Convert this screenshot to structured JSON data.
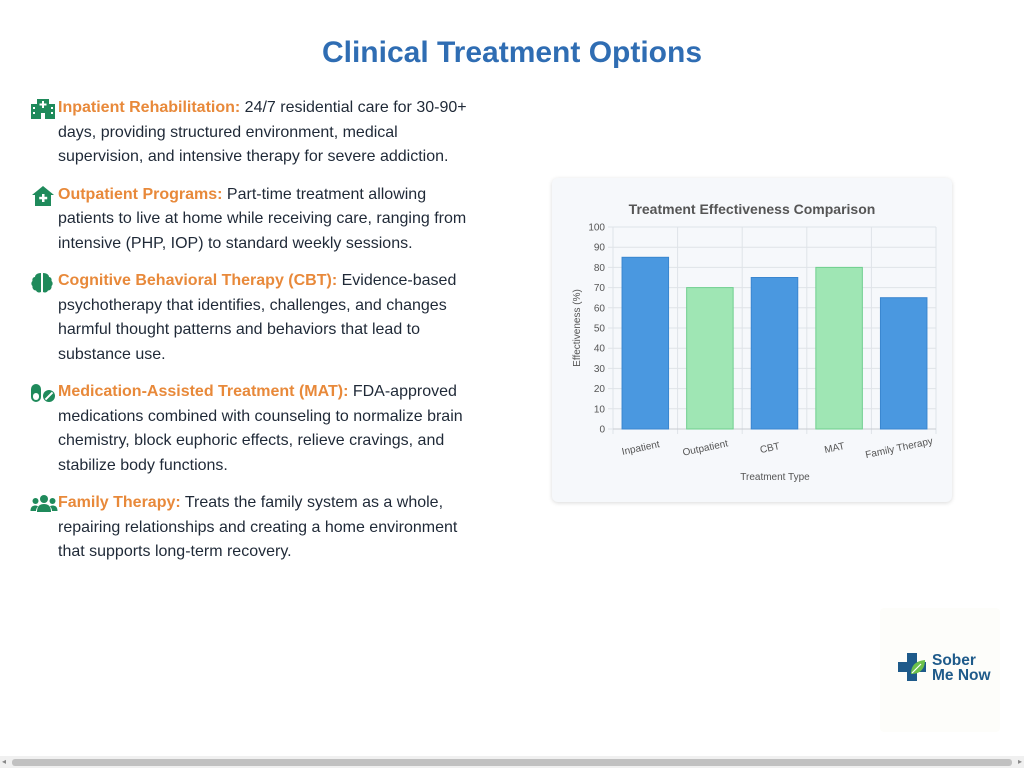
{
  "page": {
    "title": "Clinical Treatment Options"
  },
  "colors": {
    "title": "#2f6db3",
    "heading": "#e8893a",
    "icon": "#1f8a5b",
    "bar_blue": "#4a98e0",
    "bar_green": "#9fe6b4"
  },
  "options": [
    {
      "icon": "hospital-icon",
      "title": "Inpatient Rehabilitation:",
      "text": " 24/7 residential care for 30-90+ days, providing structured environment, medical supervision, and intensive therapy for severe addiction."
    },
    {
      "icon": "house-medical-icon",
      "title": "Outpatient Programs:",
      "text": " Part-time treatment allowing patients to live at home while receiving care, ranging from intensive (PHP, IOP) to standard weekly sessions."
    },
    {
      "icon": "brain-icon",
      "title": "Cognitive Behavioral Therapy (CBT):",
      "text": " Evidence-based psychotherapy that identifies, challenges, and changes harmful thought patterns and behaviors that lead to substance use."
    },
    {
      "icon": "pills-icon",
      "title": "Medication-Assisted Treatment (MAT):",
      "text": " FDA-approved medications combined with counseling to normalize brain chemistry, block euphoric effects, relieve cravings, and stabilize body functions."
    },
    {
      "icon": "people-icon",
      "title": "Family Therapy:",
      "text": " Treats the family system as a whole, repairing relationships and creating a home environment that supports long-term recovery."
    }
  ],
  "chart_data": {
    "type": "bar",
    "title": "Treatment Effectiveness Comparison",
    "xlabel": "Treatment Type",
    "ylabel": "Effectiveness (%)",
    "categories": [
      "Inpatient",
      "Outpatient",
      "CBT",
      "MAT",
      "Family Therapy"
    ],
    "values": [
      85,
      70,
      75,
      80,
      65
    ],
    "bar_colors": [
      "#4a98e0",
      "#9fe6b4",
      "#4a98e0",
      "#9fe6b4",
      "#4a98e0"
    ],
    "ylim": [
      0,
      100
    ],
    "yticks": [
      0,
      10,
      20,
      30,
      40,
      50,
      60,
      70,
      80,
      90,
      100
    ],
    "grid": true,
    "legend": "none"
  },
  "logo": {
    "line1": "Sober",
    "line2": "Me Now"
  },
  "scrollbar": {
    "left_arrow": "◂",
    "right_arrow": "▸"
  }
}
